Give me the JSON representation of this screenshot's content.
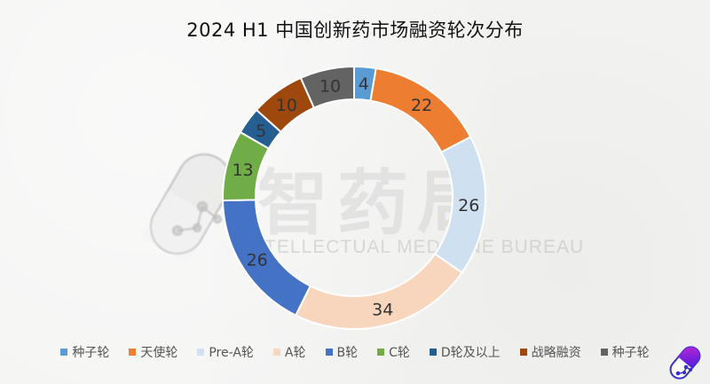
{
  "header": {
    "title": "2024 H1 中国创新药市场融资轮次分布"
  },
  "watermark": {
    "cn": "智药局",
    "en": "INTELLECTUAL MEDICINE BUREAU"
  },
  "chart_data": {
    "type": "pie",
    "subtype": "doughnut",
    "title": "2024 H1 中国创新药市场融资轮次分布",
    "categories": [
      "种子轮",
      "天使轮",
      "Pre-A轮",
      "A轮",
      "B轮",
      "C轮",
      "D轮及以上",
      "战略融资",
      "种子轮"
    ],
    "values": [
      4,
      22,
      26,
      34,
      26,
      13,
      5,
      10,
      10
    ],
    "colors": [
      "#5b9bd5",
      "#ed7d31",
      "#cfe0f1",
      "#f8d6bd",
      "#4472c4",
      "#70ad47",
      "#255e91",
      "#9e480e",
      "#636363"
    ],
    "data_labels": true,
    "legend_position": "bottom",
    "total": 150
  },
  "legend": {
    "items": [
      {
        "label": "种子轮",
        "color": "#5b9bd5"
      },
      {
        "label": "天使轮",
        "color": "#ed7d31"
      },
      {
        "label": "Pre-A轮",
        "color": "#cfe0f1"
      },
      {
        "label": "A轮",
        "color": "#f8d6bd"
      },
      {
        "label": "B轮",
        "color": "#4472c4"
      },
      {
        "label": "C轮",
        "color": "#70ad47"
      },
      {
        "label": "D轮及以上",
        "color": "#255e91"
      },
      {
        "label": "战略融资",
        "color": "#9e480e"
      },
      {
        "label": "种子轮",
        "color": "#636363"
      }
    ]
  }
}
